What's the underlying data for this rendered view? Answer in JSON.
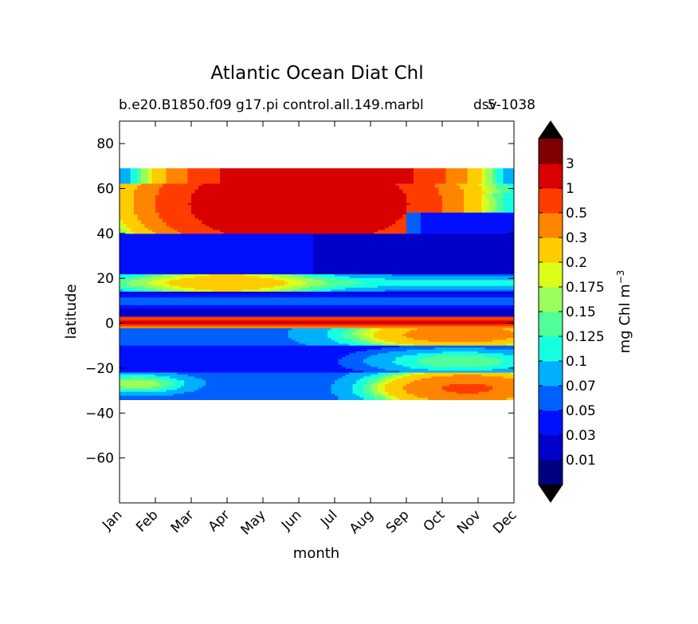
{
  "chart_data": {
    "type": "heatmap",
    "title": "Atlantic Ocean Diat Chl",
    "subtitle_left": "b.e20.B1850.f09 g17.pi control.all.149.marbl",
    "subtitle_right": "5-1038",
    "subtitle_overlap": "dsv",
    "xlabel": "month",
    "ylabel": "latitude",
    "x_ticks": [
      "Jan",
      "Feb",
      "Mar",
      "Apr",
      "May",
      "Jun",
      "Jul",
      "Aug",
      "Sep",
      "Oct",
      "Nov",
      "Dec"
    ],
    "y_ticks": [
      80,
      60,
      40,
      20,
      0,
      -20,
      -40,
      -60
    ],
    "ylim": [
      -80,
      90
    ],
    "data_lat_range": [
      -34,
      69
    ],
    "colorbar": {
      "label": "mg Chl m",
      "label_superscript": "−3",
      "levels": [
        "0.01",
        "0.03",
        "0.05",
        "0.07",
        "0.1",
        "0.125",
        "0.15",
        "0.175",
        "0.2",
        "0.3",
        "0.5",
        "1",
        "3"
      ],
      "colors": [
        "#00007f",
        "#0000c8",
        "#0010ff",
        "#0060ff",
        "#00b0ff",
        "#16ffe1",
        "#50ff9a",
        "#9aff5d",
        "#dcff1a",
        "#ffcc00",
        "#ff8400",
        "#ff3c00",
        "#d80000",
        "#7f0000"
      ],
      "extend": "both"
    }
  }
}
